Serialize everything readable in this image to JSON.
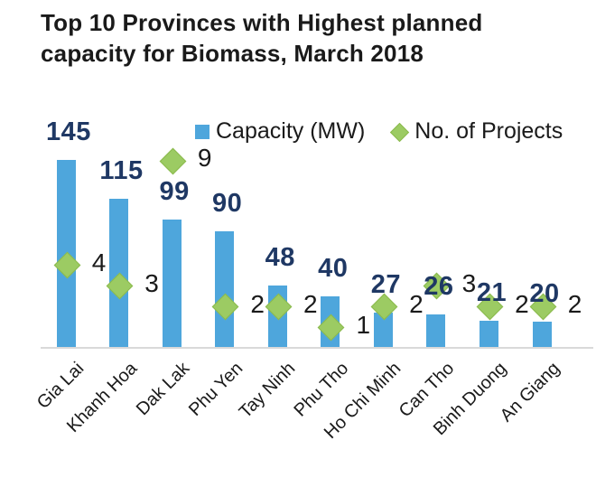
{
  "title": {
    "line1": "Top 10 Provinces with Highest planned",
    "line2": "capacity for Biomass, March 2018"
  },
  "legend": {
    "capacity_label": "Capacity (MW)",
    "projects_label": "No. of Projects"
  },
  "colors": {
    "bar_blue": "#4EA6DC",
    "diamond_green": "#9CCB63",
    "diamond_border": "#8BBA4D",
    "capacity_label_navy": "#1F3864",
    "text_black": "#1A1A1A",
    "axis_gray": "#D9D9D9"
  },
  "chart_data": {
    "type": "bar",
    "title": "Top 10 Provinces with Highest planned capacity for Biomass, March 2018",
    "categories": [
      "Gia Lai",
      "Khanh Hoa",
      "Dak Lak",
      "Phu Yen",
      "Tay Ninh",
      "Phu Tho",
      "Ho Chi Minh",
      "Can Tho",
      "Binh Duong",
      "An Giang"
    ],
    "series": [
      {
        "name": "Capacity (MW)",
        "type": "bar",
        "axis": "primary",
        "marker": "square",
        "color": "#4EA6DC",
        "values": [
          145,
          115,
          99,
          90,
          48,
          40,
          27,
          26,
          21,
          20
        ]
      },
      {
        "name": "No. of Projects",
        "type": "scatter",
        "axis": "secondary",
        "marker": "diamond",
        "color": "#9CCB63",
        "values": [
          4,
          3,
          9,
          2,
          2,
          1,
          2,
          3,
          2,
          2
        ]
      }
    ],
    "xlabel": "",
    "ylabel": "",
    "ylim_primary": [
      0,
      160
    ],
    "ylim_secondary": [
      0,
      10
    ],
    "grid": false,
    "y_axis_visible": false,
    "legend_position": "top",
    "data_labels": true,
    "x_tick_rotation": 45
  }
}
